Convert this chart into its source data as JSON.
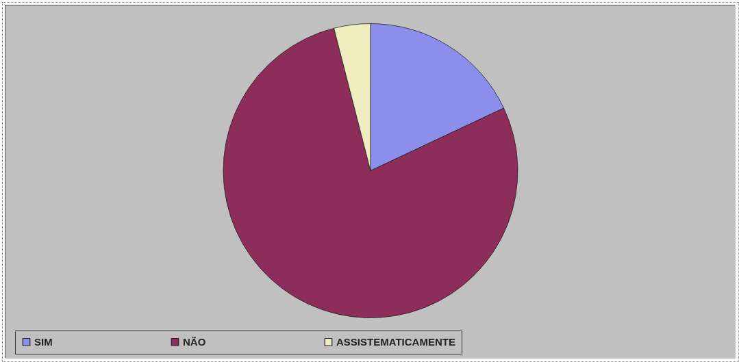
{
  "chart_data": {
    "type": "pie",
    "categories": [
      "SIM",
      "NÃO",
      "ASSISTEMATICAMENTE"
    ],
    "values": [
      18,
      78,
      4
    ],
    "colors": [
      "#8b8eeb",
      "#8d2d59",
      "#efedbd"
    ],
    "legend": "bottom"
  }
}
